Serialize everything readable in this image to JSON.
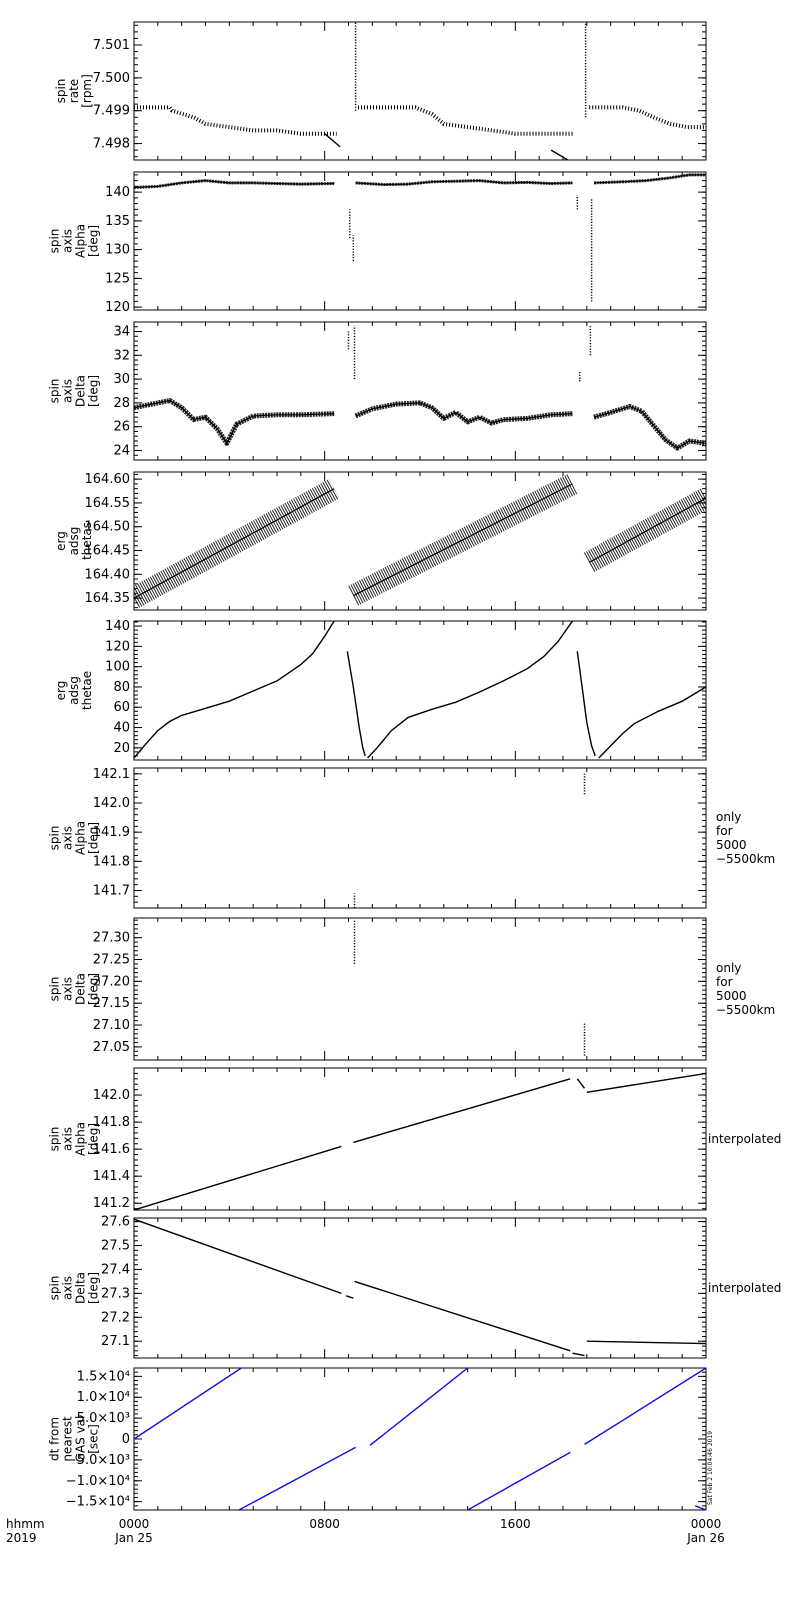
{
  "colors": {
    "frame": "#000000",
    "data": "#000000",
    "dt_line": "#1010e0"
  },
  "footer": {
    "hhmm": "hhmm",
    "year": "2019",
    "tick_labels": [
      {
        "t": 0,
        "line1": "0000",
        "line2": "Jan 25"
      },
      {
        "t": 8,
        "line1": "0800",
        "line2": ""
      },
      {
        "t": 16,
        "line1": "1600",
        "line2": ""
      },
      {
        "t": 24,
        "line1": "0000",
        "line2": "Jan 26"
      }
    ]
  },
  "timestamp_stamp": "Sat Feb  2 10:04:46 2019",
  "chart_data": [
    {
      "type": "scatter",
      "ylabel": [
        "spin",
        "rate",
        "[rpm]"
      ],
      "ylim": [
        7.4975,
        7.5017
      ],
      "yticks": [
        7.498,
        7.499,
        7.5,
        7.501
      ],
      "yticklabels": [
        "7.498",
        "7.499",
        "7.500",
        "7.501"
      ],
      "xlim_hours": [
        0,
        24
      ],
      "series": [
        {
          "style": "dots",
          "x": [
            0,
            1.5,
            1.6,
            2.5,
            3,
            4,
            5,
            6,
            7,
            8,
            8.5
          ],
          "y": [
            7.4991,
            7.4991,
            7.499,
            7.4988,
            7.4986,
            7.4985,
            7.4984,
            7.4984,
            7.4983,
            7.4983,
            7.4983
          ]
        },
        {
          "style": "line",
          "x": [
            8.0,
            8.65
          ],
          "y": [
            7.4983,
            7.4979
          ]
        },
        {
          "style": "vline",
          "x": [
            9.3,
            9.3
          ],
          "y": [
            7.499,
            7.5017
          ]
        },
        {
          "style": "dots",
          "x": [
            9.4,
            11,
            11.8,
            12.5,
            13,
            14,
            15,
            16,
            17,
            18.4
          ],
          "y": [
            7.4991,
            7.4991,
            7.4991,
            7.4989,
            7.4986,
            7.4985,
            7.4984,
            7.4983,
            7.4983,
            7.4983
          ]
        },
        {
          "style": "line",
          "x": [
            17.5,
            18.2
          ],
          "y": [
            7.4978,
            7.4975
          ]
        },
        {
          "style": "vline",
          "x": [
            18.95,
            18.95
          ],
          "y": [
            7.4988,
            7.5017
          ]
        },
        {
          "style": "dots",
          "x": [
            19.1,
            20.5,
            21.2,
            21.8,
            22.5,
            23.2,
            24
          ],
          "y": [
            7.4991,
            7.4991,
            7.499,
            7.4988,
            7.4986,
            7.4985,
            7.4985
          ]
        }
      ]
    },
    {
      "type": "scatter",
      "ylabel": [
        "spin",
        "axis",
        "Alpha",
        "[deg]"
      ],
      "ylim": [
        119.5,
        143.5
      ],
      "yticks": [
        120,
        125,
        130,
        135,
        140
      ],
      "yticklabels": [
        "120",
        "125",
        "130",
        "135",
        "140"
      ],
      "xlim_hours": [
        0,
        24
      ],
      "series": [
        {
          "style": "band",
          "x": [
            0,
            1,
            2,
            3,
            4,
            5,
            6,
            7,
            8.4
          ],
          "y": [
            140.8,
            141.0,
            141.6,
            142.0,
            141.6,
            141.6,
            141.5,
            141.4,
            141.5
          ]
        },
        {
          "style": "vline",
          "x": [
            9.05,
            9.05
          ],
          "y": [
            132.0,
            137.0
          ]
        },
        {
          "style": "vline",
          "x": [
            9.2,
            9.2
          ],
          "y": [
            128.0,
            132.5
          ]
        },
        {
          "style": "band",
          "x": [
            9.3,
            10.5,
            11.5,
            12.5,
            13.5,
            14.5,
            15.5,
            16.5,
            17.5,
            18.4
          ],
          "y": [
            141.6,
            141.3,
            141.4,
            141.8,
            141.9,
            142.0,
            141.6,
            141.7,
            141.5,
            141.6
          ]
        },
        {
          "style": "vline",
          "x": [
            18.6,
            18.6
          ],
          "y": [
            137.0,
            139.5
          ]
        },
        {
          "style": "vline",
          "x": [
            19.2,
            19.2
          ],
          "y": [
            121.0,
            139.0
          ]
        },
        {
          "style": "band",
          "x": [
            19.3,
            20.5,
            21.5,
            22.5,
            23.3,
            24
          ],
          "y": [
            141.6,
            141.8,
            142.0,
            142.5,
            143.0,
            143.0
          ]
        }
      ]
    },
    {
      "type": "scatter",
      "ylabel": [
        "spin",
        "axis",
        "Delta",
        "[deg]"
      ],
      "ylim": [
        23.2,
        34.8
      ],
      "yticks": [
        24,
        26,
        28,
        30,
        32,
        34
      ],
      "yticklabels": [
        "24",
        "26",
        "28",
        "30",
        "32",
        "34"
      ],
      "xlim_hours": [
        0,
        24
      ],
      "series": [
        {
          "style": "band",
          "x": [
            0,
            1,
            1.5,
            2,
            2.5,
            3,
            3.5,
            3.9,
            4.3,
            5,
            6,
            7,
            8.4
          ],
          "y": [
            27.6,
            28.0,
            28.2,
            27.6,
            26.6,
            26.8,
            25.8,
            24.6,
            26.2,
            26.9,
            27.0,
            27.0,
            27.1
          ]
        },
        {
          "style": "vline",
          "x": [
            9.0,
            9.0
          ],
          "y": [
            32.5,
            34.0
          ]
        },
        {
          "style": "vline",
          "x": [
            9.25,
            9.25
          ],
          "y": [
            30.0,
            34.5
          ]
        },
        {
          "style": "band",
          "x": [
            9.3,
            10,
            11,
            12,
            12.5,
            13,
            13.5,
            14,
            14.5,
            15,
            15.5,
            16.5,
            17.5,
            18.4
          ],
          "y": [
            26.9,
            27.5,
            27.9,
            28.0,
            27.6,
            26.7,
            27.2,
            26.4,
            26.8,
            26.3,
            26.6,
            26.7,
            27.0,
            27.1
          ]
        },
        {
          "style": "vline",
          "x": [
            18.7,
            18.7
          ],
          "y": [
            29.8,
            30.6
          ]
        },
        {
          "style": "vline",
          "x": [
            19.15,
            19.15
          ],
          "y": [
            32.0,
            34.5
          ]
        },
        {
          "style": "band",
          "x": [
            19.3,
            20,
            20.8,
            21.3,
            21.8,
            22.3,
            22.8,
            23.3,
            24
          ],
          "y": [
            26.8,
            27.2,
            27.7,
            27.3,
            26.1,
            24.9,
            24.2,
            24.8,
            24.6
          ]
        }
      ]
    },
    {
      "type": "scatter",
      "ylabel": [
        "erg",
        "adsg",
        "thetas"
      ],
      "ylim": [
        164.325,
        164.615
      ],
      "yticks": [
        164.35,
        164.4,
        164.45,
        164.5,
        164.55,
        164.6
      ],
      "yticklabels": [
        "164.35",
        "164.40",
        "164.45",
        "164.50",
        "164.55",
        "164.60"
      ],
      "xlim_hours": [
        0,
        24
      ],
      "series": [
        {
          "style": "band",
          "x": [
            0,
            8.4
          ],
          "y": [
            164.35,
            164.58
          ]
        },
        {
          "style": "band",
          "x": [
            9.2,
            18.4
          ],
          "y": [
            164.355,
            164.59
          ]
        },
        {
          "style": "band",
          "x": [
            19.1,
            24
          ],
          "y": [
            164.425,
            164.56
          ]
        }
      ]
    },
    {
      "type": "line",
      "ylabel": [
        "erg",
        "adsg",
        "thetae"
      ],
      "ylim": [
        8,
        145
      ],
      "yticks": [
        20,
        40,
        60,
        80,
        100,
        120,
        140
      ],
      "yticklabels": [
        "20",
        "40",
        "60",
        "80",
        "100",
        "120",
        "140"
      ],
      "xlim_hours": [
        0,
        24
      ],
      "series": [
        {
          "style": "line",
          "x": [
            0,
            0.5,
            1,
            1.5,
            2,
            3,
            4,
            5,
            6,
            7,
            7.5,
            8,
            8.4
          ],
          "y": [
            10,
            24,
            37,
            46,
            52,
            59,
            66,
            76,
            86,
            102,
            113,
            130,
            145
          ]
        },
        {
          "style": "line",
          "x": [
            8.95,
            9.2,
            9.45,
            9.6,
            9.7
          ],
          "y": [
            115,
            80,
            40,
            20,
            12
          ]
        },
        {
          "style": "line",
          "x": [
            9.8,
            10.2,
            10.8,
            11.5,
            12.5,
            13.5,
            14.5,
            15.5,
            16.5,
            17.2,
            17.8,
            18.4
          ],
          "y": [
            10,
            20,
            37,
            50,
            58,
            65,
            75,
            86,
            98,
            110,
            125,
            145
          ]
        },
        {
          "style": "line",
          "x": [
            18.6,
            18.8,
            19.0,
            19.2,
            19.35
          ],
          "y": [
            115,
            80,
            45,
            22,
            12
          ]
        },
        {
          "style": "line",
          "x": [
            19.5,
            20,
            20.5,
            21,
            22,
            23,
            24
          ],
          "y": [
            10,
            22,
            34,
            44,
            56,
            66,
            80
          ]
        }
      ]
    },
    {
      "type": "scatter",
      "ylabel": [
        "spin",
        "axis",
        "Alpha",
        "[deg]"
      ],
      "side_note": [
        "only",
        "for",
        "5000",
        "−5500km"
      ],
      "ylim": [
        141.64,
        142.12
      ],
      "yticks": [
        141.7,
        141.8,
        141.9,
        142.0,
        142.1
      ],
      "yticklabels": [
        "141.7",
        "141.8",
        "141.9",
        "142.0",
        "142.1"
      ],
      "xlim_hours": [
        0,
        24
      ],
      "series": [
        {
          "style": "vline",
          "x": [
            9.25,
            9.25
          ],
          "y": [
            141.64,
            141.69
          ]
        },
        {
          "style": "vline",
          "x": [
            18.9,
            18.9
          ],
          "y": [
            142.03,
            142.1
          ]
        }
      ]
    },
    {
      "type": "scatter",
      "ylabel": [
        "spin",
        "axis",
        "Delta",
        "[deg]"
      ],
      "side_note": [
        "only",
        "for",
        "5000",
        "−5500km"
      ],
      "ylim": [
        27.02,
        27.345
      ],
      "yticks": [
        27.05,
        27.1,
        27.15,
        27.2,
        27.25,
        27.3
      ],
      "yticklabels": [
        "27.05",
        "27.10",
        "27.15",
        "27.20",
        "27.25",
        "27.30"
      ],
      "xlim_hours": [
        0,
        24
      ],
      "series": [
        {
          "style": "vline",
          "x": [
            9.25,
            9.25
          ],
          "y": [
            27.24,
            27.34
          ]
        },
        {
          "style": "vline",
          "x": [
            18.9,
            18.9
          ],
          "y": [
            27.03,
            27.105
          ]
        }
      ]
    },
    {
      "type": "line",
      "ylabel": [
        "spin",
        "axis",
        "Alpha",
        "[deg]"
      ],
      "side_note": [
        "interpolated"
      ],
      "ylim": [
        141.15,
        142.2
      ],
      "yticks": [
        141.2,
        141.4,
        141.6,
        141.8,
        142.0
      ],
      "yticklabels": [
        "141.2",
        "141.4",
        "141.6",
        "141.8",
        "142.0"
      ],
      "xlim_hours": [
        0,
        24
      ],
      "series": [
        {
          "style": "line",
          "x": [
            0,
            8.7
          ],
          "y": [
            141.15,
            141.62
          ]
        },
        {
          "style": "line",
          "x": [
            9.2,
            18.3
          ],
          "y": [
            141.65,
            142.12
          ]
        },
        {
          "style": "line",
          "x": [
            18.6,
            18.9
          ],
          "y": [
            142.12,
            142.05
          ]
        },
        {
          "style": "line",
          "x": [
            19.0,
            24
          ],
          "y": [
            142.02,
            142.16
          ]
        }
      ]
    },
    {
      "type": "line",
      "ylabel": [
        "spin",
        "axis",
        "Delta",
        "[deg]"
      ],
      "side_note": [
        "interpolated"
      ],
      "ylim": [
        27.03,
        27.615
      ],
      "yticks": [
        27.1,
        27.2,
        27.3,
        27.4,
        27.5,
        27.6
      ],
      "yticklabels": [
        "27.1",
        "27.2",
        "27.3",
        "27.4",
        "27.5",
        "27.6"
      ],
      "xlim_hours": [
        0,
        24
      ],
      "series": [
        {
          "style": "line",
          "x": [
            0,
            8.7
          ],
          "y": [
            27.61,
            27.3
          ]
        },
        {
          "style": "line",
          "x": [
            8.9,
            9.2
          ],
          "y": [
            27.29,
            27.28
          ]
        },
        {
          "style": "line",
          "x": [
            9.25,
            18.3
          ],
          "y": [
            27.35,
            27.06
          ]
        },
        {
          "style": "line",
          "x": [
            18.4,
            18.9
          ],
          "y": [
            27.05,
            27.04
          ]
        },
        {
          "style": "line",
          "x": [
            19.0,
            24
          ],
          "y": [
            27.1,
            27.09
          ]
        }
      ]
    },
    {
      "type": "line",
      "ylabel": [
        "dt from",
        "nearest",
        "GAS val",
        "[sec]"
      ],
      "ylim": [
        -17000,
        17000
      ],
      "yticks": [
        -15000,
        -10000,
        -5000,
        0,
        5000,
        10000,
        15000
      ],
      "yticklabels": [
        "−1.5×10⁴",
        "−1.0×10⁴",
        "−5.0×10³",
        "0",
        "5.0×10³",
        "1.0×10⁴",
        "1.5×10⁴"
      ],
      "xlim_hours": [
        0,
        24
      ],
      "series_color": "#1010e0",
      "series": [
        {
          "style": "line",
          "x": [
            0,
            4.5
          ],
          "y": [
            0,
            17000
          ]
        },
        {
          "style": "line",
          "x": [
            4.4,
            9.3
          ],
          "y": [
            -17000,
            -2000
          ]
        },
        {
          "style": "line",
          "x": [
            9.9,
            14.0
          ],
          "y": [
            -1500,
            17000
          ]
        },
        {
          "style": "line",
          "x": [
            14.0,
            18.3
          ],
          "y": [
            -17000,
            -3200
          ]
        },
        {
          "style": "line",
          "x": [
            18.9,
            24
          ],
          "y": [
            -1300,
            17000
          ]
        },
        {
          "style": "line",
          "x": [
            23.55,
            24
          ],
          "y": [
            -16000,
            -17000
          ]
        }
      ]
    }
  ]
}
